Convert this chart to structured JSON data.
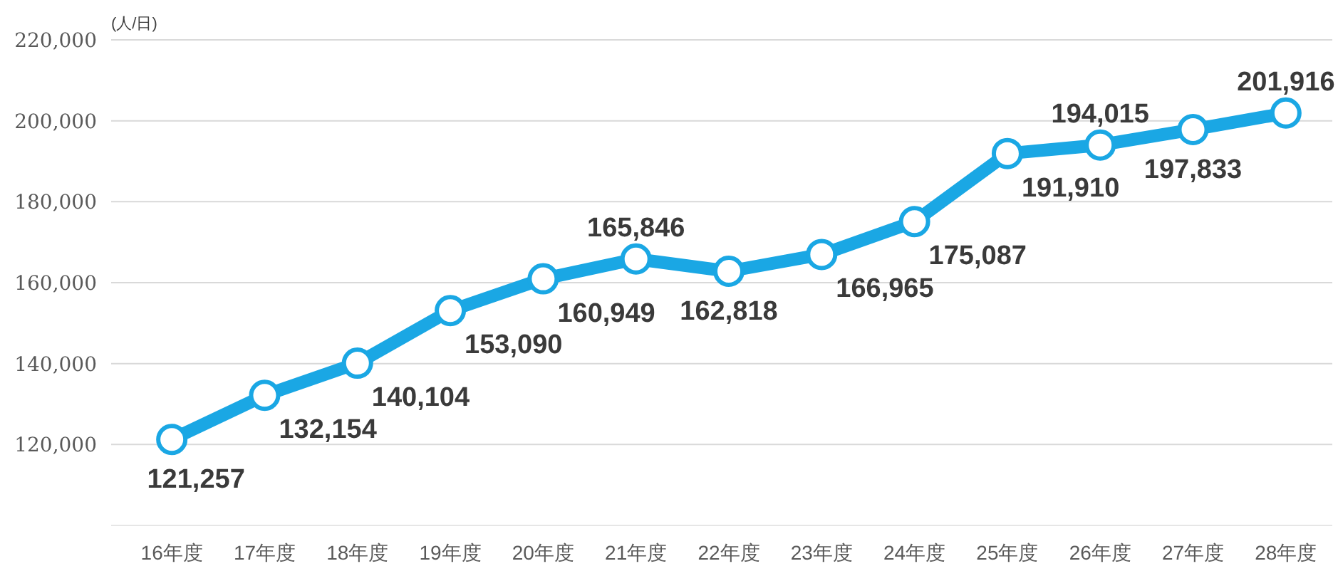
{
  "chart_data": {
    "type": "line",
    "ylabel": "(人/日)",
    "categories": [
      "16年度",
      "17年度",
      "18年度",
      "19年度",
      "20年度",
      "21年度",
      "22年度",
      "23年度",
      "24年度",
      "25年度",
      "26年度",
      "27年度",
      "28年度"
    ],
    "series": [
      {
        "color": "#1aa7e4",
        "values": [
          121257,
          132154,
          140104,
          153090,
          160949,
          165846,
          162818,
          166965,
          175087,
          191910,
          194015,
          197833,
          201916
        ],
        "value_labels": [
          "121,257",
          "132,154",
          "140,104",
          "153,090",
          "160,949",
          "165,846",
          "162,818",
          "166,965",
          "175,087",
          "191,910",
          "194,015",
          "197,833",
          "201,916"
        ]
      }
    ],
    "ylim": [
      100000,
      220000
    ],
    "yticks": [
      {
        "value": 120000,
        "label": "120,000"
      },
      {
        "value": 140000,
        "label": "140,000"
      },
      {
        "value": 160000,
        "label": "160,000"
      },
      {
        "value": 180000,
        "label": "180,000"
      },
      {
        "value": 200000,
        "label": "200,000"
      },
      {
        "value": 220000,
        "label": "220,000"
      }
    ],
    "grid": "y",
    "marker": "circle",
    "line_style": "solid"
  }
}
